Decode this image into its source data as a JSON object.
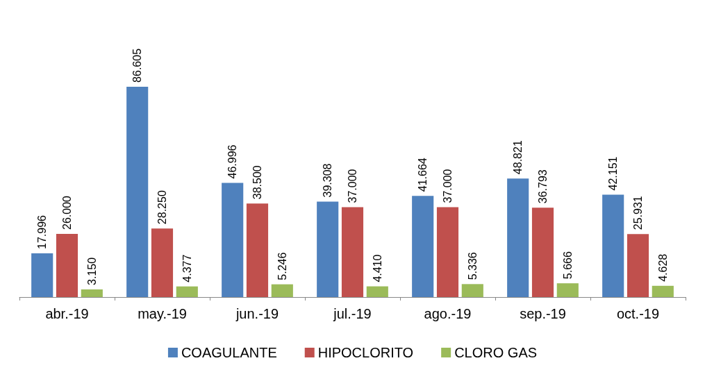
{
  "chart_data": {
    "type": "bar",
    "categories": [
      "abr.-19",
      "may.-19",
      "jun.-19",
      "jul.-19",
      "ago.-19",
      "sep.-19",
      "oct.-19"
    ],
    "series": [
      {
        "name": "COAGULANTE",
        "color": "#4f81bd",
        "values": [
          17.996,
          86.605,
          46.996,
          39.308,
          41.664,
          48.821,
          42.151
        ],
        "value_labels": [
          "17.996",
          "86.605",
          "46.996",
          "39.308",
          "41.664",
          "48.821",
          "42.151"
        ]
      },
      {
        "name": "HIPOCLORITO",
        "color": "#c0504d",
        "values": [
          26.0,
          28.25,
          38.5,
          37.0,
          37.0,
          36.793,
          25.931
        ],
        "value_labels": [
          "26.000",
          "28.250",
          "38.500",
          "37.000",
          "37.000",
          "36.793",
          "25.931"
        ]
      },
      {
        "name": "CLORO GAS",
        "color": "#9bbb59",
        "values": [
          3.15,
          4.377,
          5.246,
          4.41,
          5.336,
          5.666,
          4.628
        ],
        "value_labels": [
          "3.150",
          "4.377",
          "5.246",
          "4.410",
          "5.336",
          "5.666",
          "4.628"
        ]
      }
    ],
    "legend": "bottom"
  }
}
